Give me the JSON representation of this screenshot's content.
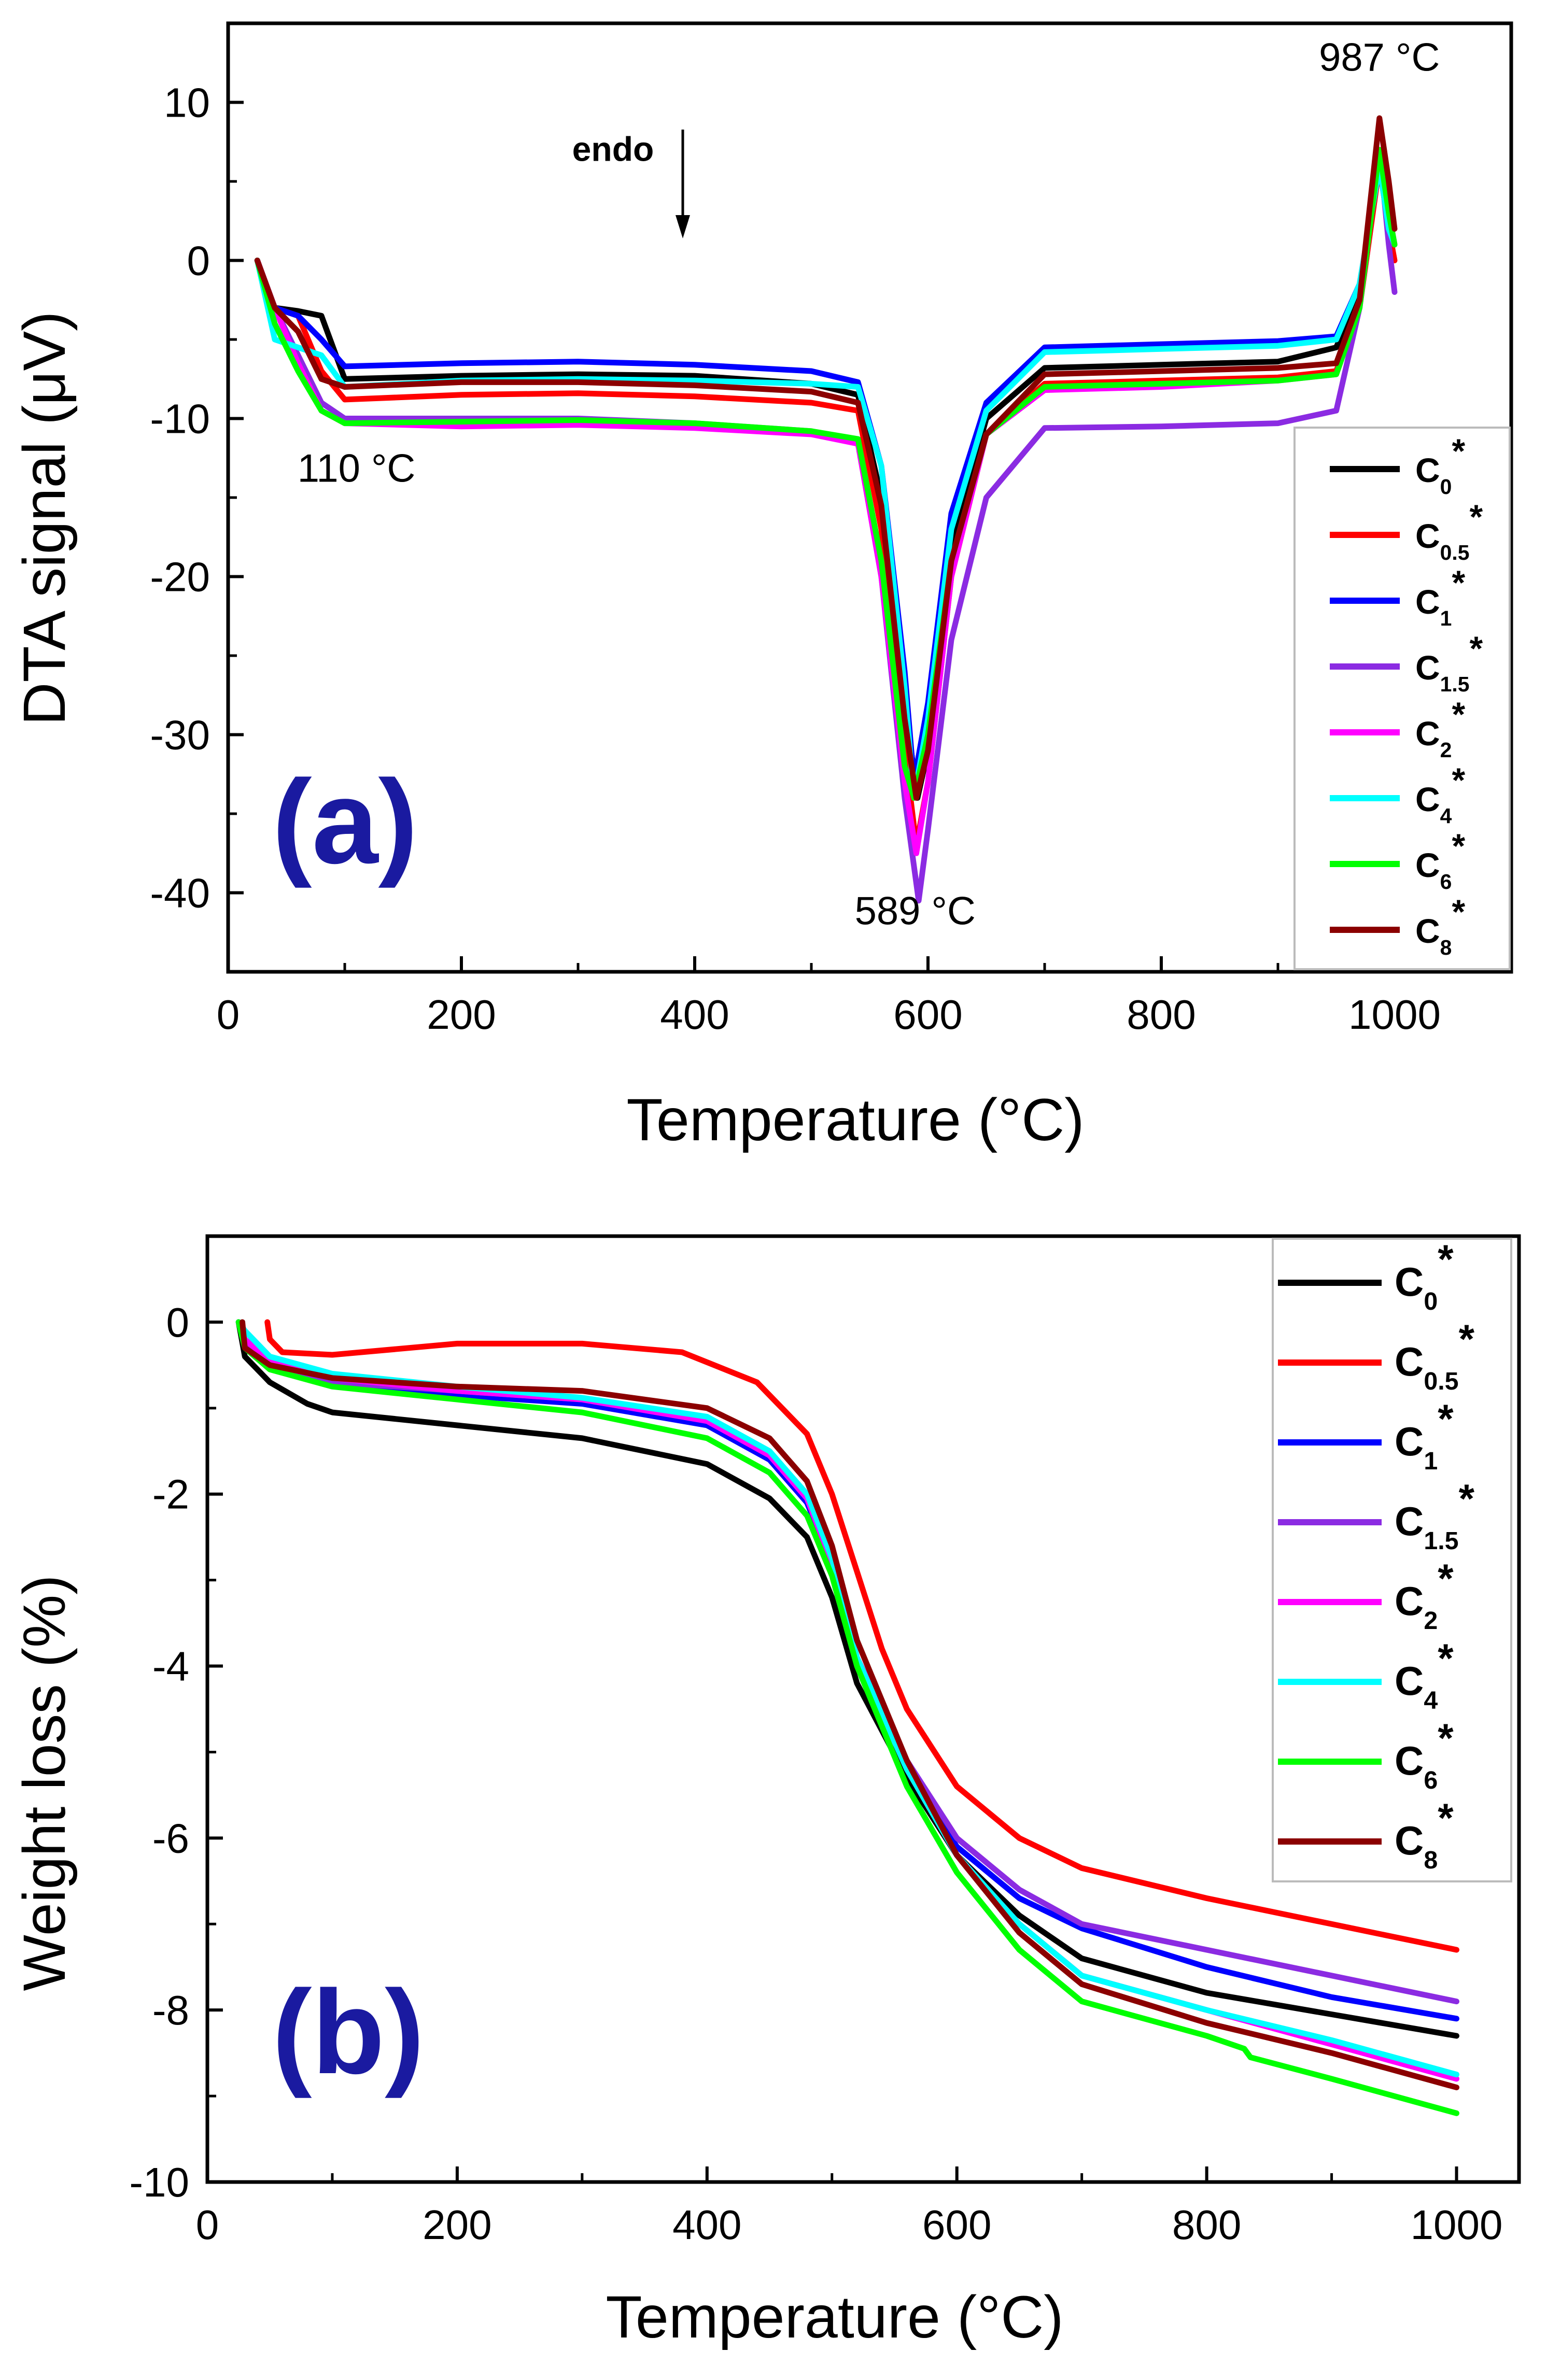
{
  "chart_data": [
    {
      "type": "line",
      "panel_label": "(a)",
      "xlabel": "Temperature (°C)",
      "ylabel": "DTA signal (μV)",
      "xlim": [
        0,
        1100
      ],
      "ylim": [
        -45,
        15
      ],
      "xticks": [
        0,
        200,
        400,
        600,
        800,
        1000
      ],
      "yticks": [
        10,
        0,
        -10,
        -20,
        -30,
        -40
      ],
      "xtick_labels": [
        "0",
        "200",
        "400",
        "600",
        "800",
        "1000"
      ],
      "ytick_labels": [
        "10",
        "0",
        "-10",
        "-20",
        "-30",
        "-40"
      ],
      "legend_position": "right",
      "annotations": [
        {
          "text": "987 °C",
          "x": 987,
          "y": 12
        },
        {
          "text": "110 °C",
          "x": 110,
          "y": -14
        },
        {
          "text": "589 °C",
          "x": 589,
          "y": -42
        },
        {
          "text": "endo",
          "x": 330,
          "y": 6.3
        }
      ],
      "series": [
        {
          "name": "C0*",
          "base": "C",
          "sub": "0",
          "color": "#000000",
          "x": [
            25,
            40,
            60,
            80,
            100,
            200,
            300,
            400,
            500,
            540,
            560,
            580,
            591,
            600,
            620,
            650,
            700,
            800,
            900,
            950,
            970,
            987,
            995,
            1000
          ],
          "y": [
            0,
            -3,
            -3.2,
            -3.5,
            -7.5,
            -7.3,
            -7.2,
            -7.3,
            -7.8,
            -8.5,
            -15,
            -28,
            -34,
            -31,
            -18,
            -10,
            -6.8,
            -6.6,
            -6.4,
            -5.5,
            -2,
            7,
            3,
            1
          ]
        },
        {
          "name": "C0.5*",
          "base": "C",
          "sub": "0.5",
          "color": "#ff0000",
          "x": [
            25,
            40,
            60,
            80,
            100,
            200,
            300,
            400,
            500,
            540,
            560,
            580,
            590,
            600,
            620,
            650,
            700,
            800,
            900,
            950,
            970,
            987,
            995,
            1000
          ],
          "y": [
            0,
            -3,
            -3.5,
            -7,
            -8.8,
            -8.5,
            -8.4,
            -8.6,
            -9,
            -9.5,
            -17,
            -31,
            -37,
            -33,
            -20,
            -11,
            -7.8,
            -7.6,
            -7.4,
            -7,
            -3,
            6,
            2,
            0
          ]
        },
        {
          "name": "C1*",
          "base": "C",
          "sub": "1",
          "color": "#0000ff",
          "x": [
            25,
            40,
            60,
            80,
            100,
            200,
            300,
            400,
            500,
            540,
            560,
            580,
            588,
            600,
            620,
            650,
            700,
            800,
            900,
            950,
            970,
            987,
            995,
            1000
          ],
          "y": [
            0,
            -3,
            -3.5,
            -5,
            -6.7,
            -6.5,
            -6.4,
            -6.6,
            -7,
            -7.7,
            -13,
            -26,
            -33,
            -28,
            -16,
            -9,
            -5.5,
            -5.3,
            -5.1,
            -4.8,
            -1.5,
            6,
            2,
            1
          ]
        },
        {
          "name": "C1.5*",
          "base": "C",
          "sub": "1.5",
          "color": "#8b2be2",
          "x": [
            25,
            40,
            60,
            80,
            100,
            200,
            300,
            400,
            500,
            540,
            560,
            580,
            592,
            600,
            620,
            650,
            700,
            800,
            900,
            950,
            970,
            987,
            995,
            1000
          ],
          "y": [
            0,
            -3,
            -6,
            -9,
            -10,
            -10,
            -10,
            -10.3,
            -10.8,
            -11.5,
            -20,
            -34,
            -40.5,
            -36,
            -24,
            -15,
            -10.6,
            -10.5,
            -10.3,
            -9.5,
            -3,
            7,
            1,
            -2
          ]
        },
        {
          "name": "C2*",
          "base": "C",
          "sub": "2",
          "color": "#ff00ff",
          "x": [
            25,
            40,
            60,
            80,
            100,
            200,
            300,
            400,
            500,
            540,
            560,
            580,
            590,
            600,
            620,
            650,
            700,
            800,
            900,
            950,
            970,
            987,
            995,
            1000
          ],
          "y": [
            0,
            -3,
            -6.5,
            -9.5,
            -10.3,
            -10.5,
            -10.4,
            -10.6,
            -11,
            -11.6,
            -20,
            -33,
            -37.5,
            -33,
            -20,
            -11,
            -8.2,
            -8,
            -7.6,
            -7.2,
            -3,
            7,
            3,
            1
          ]
        },
        {
          "name": "C4*",
          "base": "C",
          "sub": "4",
          "color": "#00ffff",
          "x": [
            25,
            40,
            60,
            80,
            100,
            200,
            300,
            400,
            500,
            540,
            560,
            580,
            588,
            600,
            620,
            650,
            700,
            800,
            900,
            950,
            970,
            987,
            995,
            1000
          ],
          "y": [
            0,
            -5,
            -5.5,
            -6,
            -8,
            -7.6,
            -7.5,
            -7.6,
            -7.8,
            -8,
            -13,
            -27,
            -34,
            -29,
            -17,
            -9.5,
            -5.8,
            -5.6,
            -5.4,
            -5,
            -1.5,
            6,
            2,
            1
          ]
        },
        {
          "name": "C6*",
          "base": "C",
          "sub": "6",
          "color": "#00ff00",
          "x": [
            25,
            40,
            60,
            80,
            100,
            200,
            300,
            400,
            500,
            540,
            560,
            580,
            588,
            600,
            620,
            650,
            700,
            800,
            900,
            950,
            970,
            987,
            995,
            1000
          ],
          "y": [
            0,
            -4,
            -7,
            -9.5,
            -10.3,
            -10.2,
            -10.1,
            -10.3,
            -10.8,
            -11.3,
            -19,
            -32,
            -34,
            -30,
            -19,
            -11,
            -8,
            -7.8,
            -7.6,
            -7.2,
            -3,
            7,
            3,
            1
          ]
        },
        {
          "name": "C8*",
          "base": "C",
          "sub": "8",
          "color": "#8b0000",
          "x": [
            25,
            40,
            60,
            80,
            100,
            200,
            300,
            400,
            500,
            540,
            560,
            580,
            590,
            600,
            620,
            650,
            700,
            800,
            900,
            950,
            970,
            987,
            995,
            1000
          ],
          "y": [
            0,
            -3,
            -4.5,
            -7.5,
            -8,
            -7.7,
            -7.7,
            -7.9,
            -8.3,
            -9,
            -15.5,
            -29,
            -34,
            -31,
            -19,
            -11,
            -7.2,
            -7,
            -6.8,
            -6.5,
            -2.5,
            9,
            5,
            2
          ]
        }
      ]
    },
    {
      "type": "line",
      "panel_label": "(b)",
      "xlabel": "Temperature (°C)",
      "ylabel": "Weight loss (%)",
      "xlim": [
        0,
        1050
      ],
      "ylim": [
        -10,
        1
      ],
      "xticks": [
        0,
        200,
        400,
        600,
        800,
        1000
      ],
      "yticks": [
        0,
        -2,
        -4,
        -6,
        -8,
        -10
      ],
      "xtick_labels": [
        "0",
        "200",
        "400",
        "600",
        "800",
        "1000"
      ],
      "ytick_labels": [
        "0",
        "-2",
        "-4",
        "-6",
        "-8",
        "-10"
      ],
      "legend_position": "top-right",
      "series": [
        {
          "name": "C0*",
          "base": "C",
          "sub": "0",
          "color": "#000000",
          "x": [
            25,
            30,
            50,
            80,
            100,
            200,
            300,
            400,
            450,
            480,
            500,
            520,
            560,
            600,
            650,
            700,
            800,
            900,
            1000
          ],
          "y": [
            0,
            -0.4,
            -0.7,
            -0.95,
            -1.05,
            -1.2,
            -1.35,
            -1.65,
            -2.05,
            -2.5,
            -3.2,
            -4.2,
            -5.3,
            -6.2,
            -6.9,
            -7.4,
            -7.8,
            -8.05,
            -8.3
          ]
        },
        {
          "name": "C0.5*",
          "base": "C",
          "sub": "0.5",
          "color": "#ff0000",
          "x": [
            48,
            50,
            60,
            100,
            200,
            300,
            380,
            440,
            480,
            500,
            520,
            540,
            560,
            600,
            650,
            700,
            800,
            900,
            1000
          ],
          "y": [
            0,
            -0.2,
            -0.35,
            -0.38,
            -0.25,
            -0.25,
            -0.35,
            -0.7,
            -1.3,
            -2.0,
            -2.9,
            -3.8,
            -4.5,
            -5.4,
            -6.0,
            -6.35,
            -6.7,
            -7.0,
            -7.3
          ]
        },
        {
          "name": "C1*",
          "base": "C",
          "sub": "1",
          "color": "#0000ff",
          "x": [
            25,
            30,
            50,
            100,
            200,
            300,
            400,
            450,
            480,
            500,
            520,
            560,
            600,
            650,
            700,
            800,
            900,
            1000
          ],
          "y": [
            0,
            -0.25,
            -0.5,
            -0.7,
            -0.85,
            -0.95,
            -1.2,
            -1.6,
            -2.1,
            -2.8,
            -3.9,
            -5.2,
            -6.1,
            -6.7,
            -7.05,
            -7.5,
            -7.85,
            -8.1
          ]
        },
        {
          "name": "C1.5*",
          "base": "C",
          "sub": "1.5",
          "color": "#8b2be2",
          "x": [
            25,
            30,
            50,
            100,
            200,
            300,
            400,
            450,
            480,
            500,
            520,
            560,
            600,
            650,
            700,
            800,
            900,
            1000
          ],
          "y": [
            0,
            -0.25,
            -0.5,
            -0.7,
            -0.8,
            -0.9,
            -1.15,
            -1.55,
            -2.05,
            -2.8,
            -3.9,
            -5.1,
            -6.0,
            -6.6,
            -7.0,
            -7.3,
            -7.6,
            -7.9
          ]
        },
        {
          "name": "C2*",
          "base": "C",
          "sub": "2",
          "color": "#ff00ff",
          "x": [
            25,
            30,
            50,
            100,
            200,
            300,
            400,
            450,
            480,
            500,
            520,
            560,
            600,
            650,
            700,
            800,
            900,
            1000
          ],
          "y": [
            0,
            -0.2,
            -0.45,
            -0.65,
            -0.8,
            -0.9,
            -1.15,
            -1.55,
            -2.05,
            -2.8,
            -3.9,
            -5.2,
            -6.2,
            -7.0,
            -7.6,
            -8.0,
            -8.4,
            -8.8
          ]
        },
        {
          "name": "C4*",
          "base": "C",
          "sub": "4",
          "color": "#00ffff",
          "x": [
            25,
            30,
            50,
            100,
            200,
            300,
            400,
            450,
            480,
            500,
            520,
            560,
            600,
            650,
            700,
            800,
            900,
            1000
          ],
          "y": [
            0,
            -0.1,
            -0.4,
            -0.6,
            -0.75,
            -0.88,
            -1.1,
            -1.5,
            -2.0,
            -2.75,
            -3.9,
            -5.2,
            -6.2,
            -7.0,
            -7.6,
            -8.0,
            -8.35,
            -8.75
          ]
        },
        {
          "name": "C6*",
          "base": "C",
          "sub": "6",
          "color": "#00ff00",
          "x": [
            25,
            30,
            50,
            100,
            200,
            300,
            400,
            450,
            480,
            500,
            520,
            560,
            600,
            650,
            700,
            800,
            830,
            835,
            900,
            1000
          ],
          "y": [
            0,
            -0.3,
            -0.55,
            -0.75,
            -0.9,
            -1.05,
            -1.35,
            -1.75,
            -2.25,
            -2.95,
            -4.0,
            -5.4,
            -6.4,
            -7.3,
            -7.9,
            -8.3,
            -8.45,
            -8.55,
            -8.8,
            -9.2
          ]
        },
        {
          "name": "C8*",
          "base": "C",
          "sub": "8",
          "color": "#8b0000",
          "x": [
            28,
            30,
            50,
            100,
            200,
            300,
            400,
            450,
            480,
            500,
            520,
            560,
            600,
            650,
            700,
            800,
            900,
            1000
          ],
          "y": [
            0,
            -0.3,
            -0.5,
            -0.65,
            -0.75,
            -0.8,
            -1.0,
            -1.35,
            -1.85,
            -2.6,
            -3.7,
            -5.1,
            -6.2,
            -7.1,
            -7.7,
            -8.15,
            -8.5,
            -8.9
          ]
        }
      ]
    }
  ]
}
